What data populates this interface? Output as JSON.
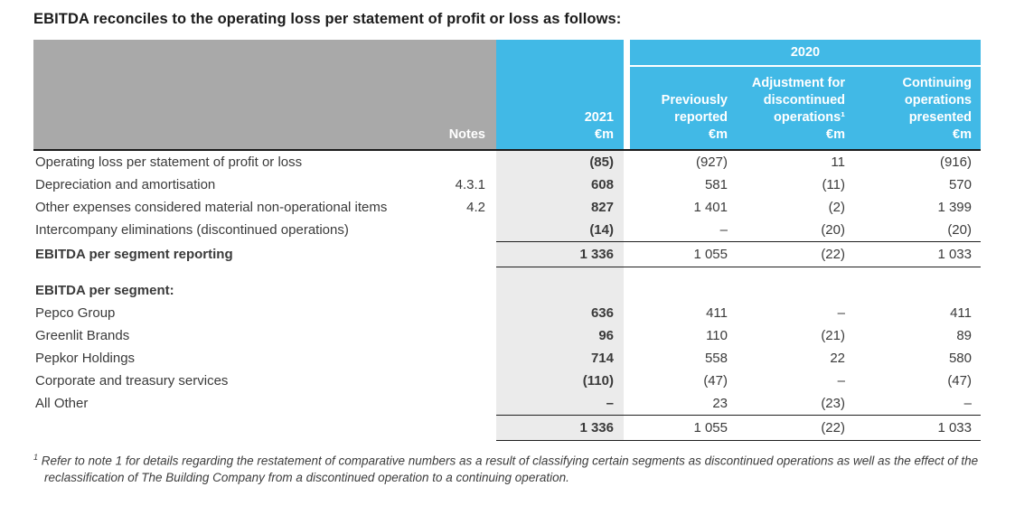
{
  "title": "EBITDA reconciles to the operating loss per statement of profit or loss as follows:",
  "colors": {
    "brand_blue": "#41b9e6",
    "header_gray": "#a9a9a9",
    "column_shade": "#ebebeb",
    "rule_black": "#1a1a1a"
  },
  "table": {
    "notes_label": "Notes",
    "col_2021": {
      "year": "2021",
      "unit": "€m"
    },
    "group_2020": "2020",
    "cols_2020": [
      {
        "title": "Previously reported",
        "unit": "€m"
      },
      {
        "title": "Adjustment for discontinued operations¹",
        "unit": "€m"
      },
      {
        "title": "Continuing operations presented",
        "unit": "€m"
      }
    ],
    "rows": [
      {
        "type": "normal",
        "label": "Operating loss per statement of profit or loss",
        "note": "",
        "v2021": "(85)",
        "prev": "(927)",
        "adj": "11",
        "cont": "(916)"
      },
      {
        "type": "normal",
        "label": "Depreciation and amortisation",
        "note": "4.3.1",
        "v2021": "608",
        "prev": "581",
        "adj": "(11)",
        "cont": "570"
      },
      {
        "type": "normal",
        "label": "Other expenses considered material non-operational items",
        "note": "4.2",
        "v2021": "827",
        "prev": "1 401",
        "adj": "(2)",
        "cont": "1 399"
      },
      {
        "type": "normal",
        "label": "Intercompany eliminations (discontinued operations)",
        "note": "",
        "v2021": "(14)",
        "prev": "–",
        "adj": "(20)",
        "cont": "(20)"
      },
      {
        "type": "total",
        "label": "EBITDA per segment reporting",
        "note": "",
        "v2021": "1 336",
        "prev": "1 055",
        "adj": "(22)",
        "cont": "1 033"
      },
      {
        "type": "spacer",
        "label": "",
        "note": "",
        "v2021": "",
        "prev": "",
        "adj": "",
        "cont": ""
      },
      {
        "type": "section",
        "label": "EBITDA per segment:",
        "note": "",
        "v2021": "",
        "prev": "",
        "adj": "",
        "cont": ""
      },
      {
        "type": "normal",
        "label": "Pepco Group",
        "note": "",
        "v2021": "636",
        "prev": "411",
        "adj": "–",
        "cont": "411"
      },
      {
        "type": "normal",
        "label": "Greenlit Brands",
        "note": "",
        "v2021": "96",
        "prev": "110",
        "adj": "(21)",
        "cont": "89"
      },
      {
        "type": "normal",
        "label": "Pepkor Holdings",
        "note": "",
        "v2021": "714",
        "prev": "558",
        "adj": "22",
        "cont": "580"
      },
      {
        "type": "normal",
        "label": "Corporate and treasury services",
        "note": "",
        "v2021": "(110)",
        "prev": "(47)",
        "adj": "–",
        "cont": "(47)"
      },
      {
        "type": "normal",
        "label": "All Other",
        "note": "",
        "v2021": "–",
        "prev": "23",
        "adj": "(23)",
        "cont": "–"
      },
      {
        "type": "total",
        "label": "",
        "note": "",
        "v2021": "1 336",
        "prev": "1 055",
        "adj": "(22)",
        "cont": "1 033"
      }
    ]
  },
  "footnote": {
    "marker": "1",
    "text": "Refer to note 1 for details regarding the restatement of comparative numbers as a result of classifying certain segments as discontinued operations as well as the effect of the reclassification of The Building Company from a discontinued operation to a continuing operation."
  }
}
